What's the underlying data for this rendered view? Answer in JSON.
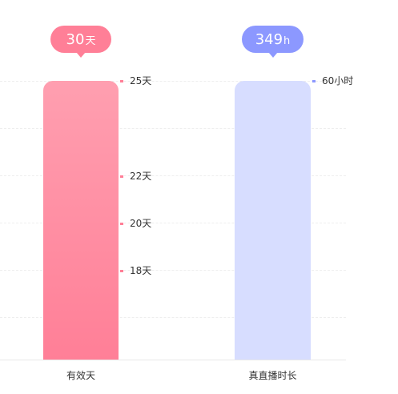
{
  "chart_data": {
    "type": "bar",
    "categories": [
      "有效天",
      "真直播时长"
    ],
    "series": [
      {
        "values": [
          30,
          349
        ]
      }
    ],
    "badges": [
      {
        "number": "30",
        "unit": "天",
        "color": "#ff7f97"
      },
      {
        "number": "349",
        "unit": "h",
        "color": "#8c98ff"
      }
    ],
    "left_ticks": [
      "25天",
      "22天",
      "20天",
      "18天"
    ],
    "right_ticks": [
      "60小时"
    ],
    "bar_colors": [
      "#ff8ca2",
      "#d7ddff"
    ],
    "grid": true
  }
}
